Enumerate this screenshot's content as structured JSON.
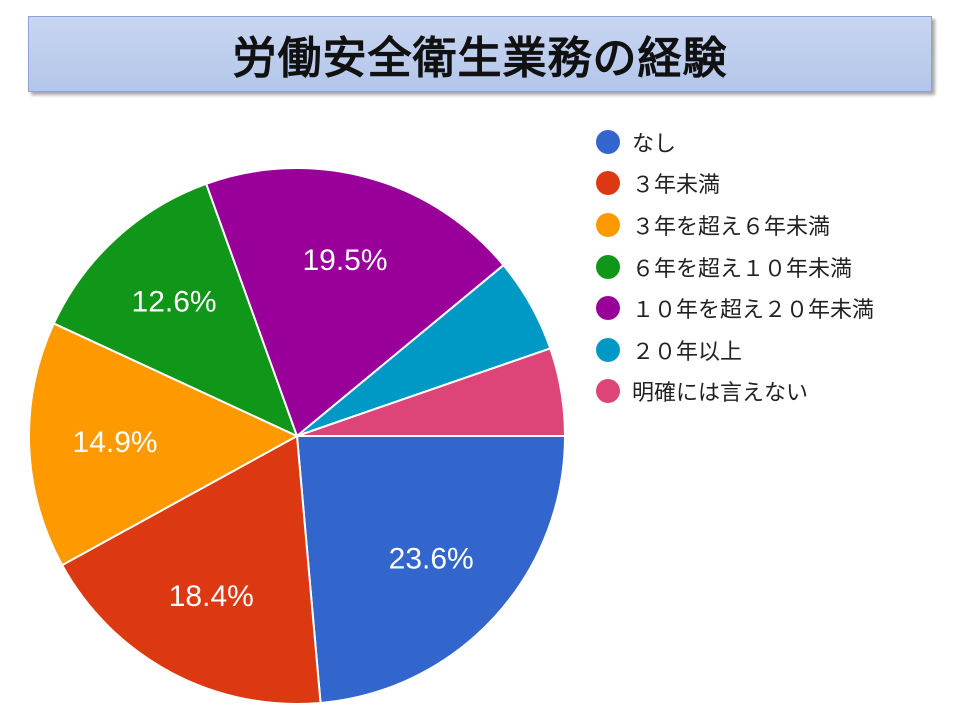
{
  "title": "労働安全衛生業務の経験",
  "chart_data": {
    "type": "pie",
    "title": "労働安全衛生業務の経験",
    "legend_position": "right",
    "start_angle": "3 o'clock, clockwise",
    "categories": [
      "なし",
      "３年未満",
      "３年を超え６年未満",
      "６年を超え１０年未満",
      "１０年を超え２０年未満",
      "２０年以上",
      "明確には言えない"
    ],
    "values": [
      23.6,
      18.4,
      14.9,
      12.6,
      19.5,
      5.7,
      5.3
    ],
    "labels": [
      "23.6%",
      "18.4%",
      "14.9%",
      "12.6%",
      "19.5%",
      "",
      ""
    ],
    "colors": [
      "#3366cc",
      "#dc3912",
      "#ff9900",
      "#109618",
      "#990099",
      "#0099c6",
      "#dd4477"
    ]
  }
}
